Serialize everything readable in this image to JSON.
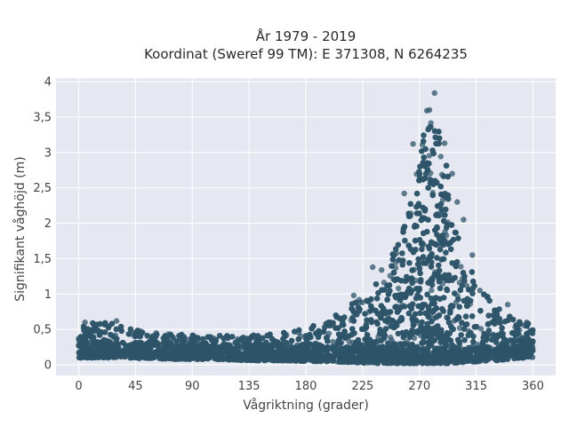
{
  "chart_data": {
    "type": "scatter",
    "title": "År 1979 - 2019",
    "subtitle": "Koordinat (Sweref 99 TM): E 371308, N 6264235",
    "xlabel": "Vågriktning (grader)",
    "ylabel": "Signifikant våghöjd (m)",
    "xlim": [
      -18,
      378
    ],
    "ylim": [
      -0.15,
      4.05
    ],
    "x_ticks": [
      0,
      45,
      90,
      135,
      180,
      225,
      270,
      315,
      360
    ],
    "x_tick_labels": [
      "0",
      "45",
      "90",
      "135",
      "180",
      "225",
      "270",
      "315",
      "360"
    ],
    "y_ticks": [
      0,
      0.5,
      1,
      1.5,
      2,
      2.5,
      3,
      3.5,
      4
    ],
    "y_tick_labels": [
      "0",
      "0,5",
      "1",
      "1,5",
      "2",
      "2,5",
      "3",
      "3,5",
      "4"
    ],
    "grid": true,
    "legend": "none",
    "colors": {
      "plot_background": "#e5e8f0",
      "grid": "#ffffff",
      "marker": "#2e5469"
    },
    "envelope": {
      "x": [
        0,
        15,
        30,
        45,
        60,
        75,
        90,
        105,
        120,
        135,
        150,
        165,
        180,
        195,
        210,
        225,
        240,
        250,
        260,
        265,
        270,
        275,
        280,
        285,
        290,
        295,
        300,
        310,
        320,
        330,
        340,
        350,
        360
      ],
      "y_max": [
        0.6,
        0.6,
        0.58,
        0.5,
        0.47,
        0.46,
        0.45,
        0.44,
        0.44,
        0.43,
        0.44,
        0.47,
        0.52,
        0.62,
        0.78,
        1.0,
        1.3,
        1.65,
        2.05,
        2.55,
        3.15,
        3.45,
        3.6,
        3.4,
        3.0,
        2.4,
        1.85,
        1.4,
        1.1,
        0.85,
        0.7,
        0.6,
        0.58
      ],
      "y_min": [
        0.1,
        0.1,
        0.1,
        0.09,
        0.09,
        0.08,
        0.08,
        0.08,
        0.07,
        0.06,
        0.06,
        0.06,
        0.05,
        0.05,
        0.04,
        0.03,
        0.02,
        0.02,
        0.02,
        0.02,
        0.02,
        0.02,
        0.02,
        0.02,
        0.02,
        0.02,
        0.03,
        0.04,
        0.05,
        0.06,
        0.08,
        0.1,
        0.1
      ]
    },
    "outliers": [
      {
        "x": 282,
        "y": 3.84
      },
      {
        "x": 278,
        "y": 3.6
      },
      {
        "x": 276,
        "y": 3.59
      },
      {
        "x": 265,
        "y": 3.12
      },
      {
        "x": 290,
        "y": 3.13
      },
      {
        "x": 296,
        "y": 2.7
      },
      {
        "x": 258,
        "y": 2.42
      },
      {
        "x": 300,
        "y": 2.3
      },
      {
        "x": 305,
        "y": 2.05
      },
      {
        "x": 312,
        "y": 1.55
      },
      {
        "x": 240,
        "y": 1.34
      },
      {
        "x": 233,
        "y": 1.38
      },
      {
        "x": 218,
        "y": 0.98
      },
      {
        "x": 340,
        "y": 0.85
      },
      {
        "x": 318,
        "y": 1.05
      },
      {
        "x": 30,
        "y": 0.62
      },
      {
        "x": 5,
        "y": 0.6
      },
      {
        "x": 355,
        "y": 0.6
      }
    ]
  }
}
